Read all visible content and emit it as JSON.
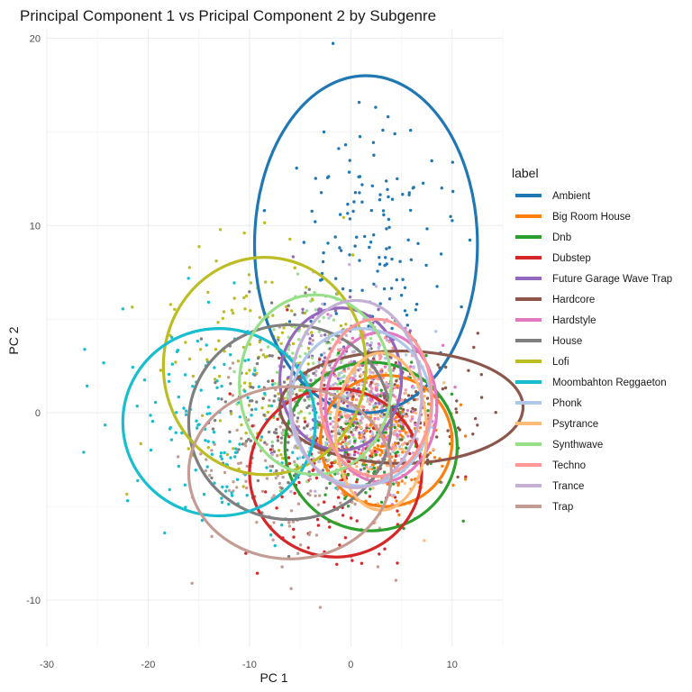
{
  "chart_data": {
    "type": "scatter",
    "title": "Principal Component 1 vs Pricipal Component 2 by Subgenre",
    "xlabel": "PC 1",
    "ylabel": "PC 2",
    "xlim": [
      -30,
      15
    ],
    "ylim": [
      -12.5,
      20.5
    ],
    "x_ticks": [
      "-30",
      "-20",
      "-10",
      "0",
      "10"
    ],
    "y_ticks": [
      "-10",
      "0",
      "10",
      "20"
    ],
    "grid": true,
    "legend": {
      "title": "label",
      "position": "right"
    },
    "series": [
      {
        "name": "Ambient",
        "color": "#1f77b4",
        "center": [
          1.5,
          9.0
        ],
        "rx": 11.0,
        "ry": 9.0,
        "spread": [
          4.0,
          4.0
        ]
      },
      {
        "name": "Big Room House",
        "color": "#ff7f0e",
        "center": [
          3.5,
          -1.5
        ],
        "rx": 6.5,
        "ry": 3.5,
        "spread": [
          2.5,
          1.5
        ]
      },
      {
        "name": "Dnb",
        "color": "#2ca02c",
        "center": [
          2.0,
          -1.8
        ],
        "rx": 8.5,
        "ry": 4.5,
        "spread": [
          3.5,
          2.0
        ]
      },
      {
        "name": "Dubstep",
        "color": "#d62728",
        "center": [
          -1.5,
          -3.2
        ],
        "rx": 8.5,
        "ry": 4.5,
        "spread": [
          4.0,
          2.5
        ]
      },
      {
        "name": "Future Garage Wave Trap",
        "color": "#9467bd",
        "center": [
          -1.0,
          1.8
        ],
        "rx": 6.0,
        "ry": 3.8,
        "spread": [
          3.0,
          2.0
        ]
      },
      {
        "name": "Hardcore",
        "color": "#8c564b",
        "center": [
          5.0,
          0.3
        ],
        "rx": 12.0,
        "ry": 3.0,
        "spread": [
          4.5,
          1.5
        ]
      },
      {
        "name": "Hardstyle",
        "color": "#e377c2",
        "center": [
          3.0,
          0.3
        ],
        "rx": 5.5,
        "ry": 4.0,
        "spread": [
          2.5,
          2.0
        ]
      },
      {
        "name": "House",
        "color": "#7f7f7f",
        "center": [
          -6.0,
          -0.5
        ],
        "rx": 10.0,
        "ry": 5.2,
        "spread": [
          4.0,
          2.5
        ]
      },
      {
        "name": "Lofi",
        "color": "#bcbd22",
        "center": [
          -8.5,
          2.5
        ],
        "rx": 10.0,
        "ry": 5.8,
        "spread": [
          5.0,
          3.5
        ]
      },
      {
        "name": "Moombahton Reggaeton",
        "color": "#17becf",
        "center": [
          -13.0,
          -0.5
        ],
        "rx": 9.5,
        "ry": 5.0,
        "spread": [
          5.0,
          3.0
        ]
      },
      {
        "name": "Phonk",
        "color": "#aec7e8",
        "center": [
          1.0,
          0.3
        ],
        "rx": 7.0,
        "ry": 4.2,
        "spread": [
          3.0,
          2.0
        ]
      },
      {
        "name": "Psytrance",
        "color": "#ffbb78",
        "center": [
          3.0,
          -1.0
        ],
        "rx": 4.5,
        "ry": 4.2,
        "spread": [
          2.5,
          2.0
        ]
      },
      {
        "name": "Synthwave",
        "color": "#98df8a",
        "center": [
          -3.5,
          1.5
        ],
        "rx": 7.5,
        "ry": 4.8,
        "spread": [
          3.5,
          2.5
        ]
      },
      {
        "name": "Techno",
        "color": "#ff9896",
        "center": [
          2.5,
          0.8
        ],
        "rx": 5.5,
        "ry": 4.2,
        "spread": [
          2.5,
          2.0
        ]
      },
      {
        "name": "Trance",
        "color": "#c5b0d5",
        "center": [
          0.5,
          1.0
        ],
        "rx": 6.5,
        "ry": 5.0,
        "spread": [
          3.0,
          2.5
        ]
      },
      {
        "name": "Trap",
        "color": "#c49c94",
        "center": [
          -6.0,
          -3.2
        ],
        "rx": 10.0,
        "ry": 4.6,
        "spread": [
          4.5,
          2.5
        ]
      }
    ]
  }
}
